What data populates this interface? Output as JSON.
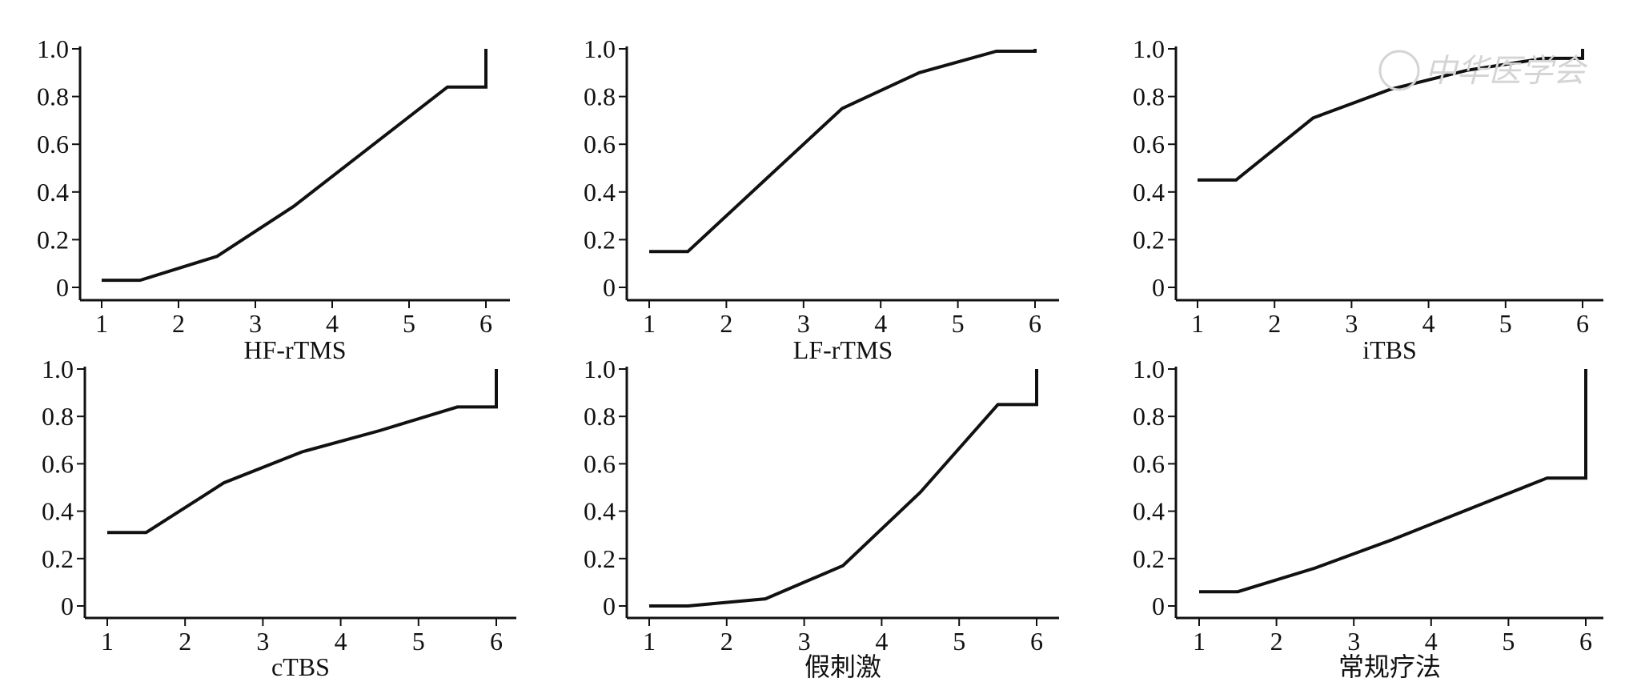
{
  "watermark": {
    "text": "中华医学会"
  },
  "chart_data": [
    {
      "type": "line",
      "xlabel": "HF-rTMS",
      "ylabel": "",
      "xlim": [
        1,
        6
      ],
      "ylim": [
        0,
        1.0
      ],
      "x_ticks": [
        "1",
        "2",
        "3",
        "4",
        "5",
        "6"
      ],
      "y_ticks": [
        "0",
        "0.2",
        "0.4",
        "0.6",
        "0.8",
        "1.0"
      ],
      "grid": false,
      "x": [
        1,
        1.5,
        2.5,
        3.5,
        4.5,
        5.5,
        6,
        6
      ],
      "values": [
        0.03,
        0.03,
        0.13,
        0.34,
        0.59,
        0.84,
        0.84,
        1.0
      ]
    },
    {
      "type": "line",
      "xlabel": "LF-rTMS",
      "ylabel": "",
      "xlim": [
        1,
        6
      ],
      "ylim": [
        0,
        1.0
      ],
      "x_ticks": [
        "1",
        "2",
        "3",
        "4",
        "5",
        "6"
      ],
      "y_ticks": [
        "0",
        "0.2",
        "0.4",
        "0.6",
        "0.8",
        "1.0"
      ],
      "grid": false,
      "x": [
        1,
        1.5,
        2.5,
        3.5,
        4.5,
        5.5,
        6,
        6
      ],
      "values": [
        0.15,
        0.15,
        0.45,
        0.75,
        0.9,
        0.99,
        0.99,
        1.0
      ]
    },
    {
      "type": "line",
      "xlabel": "iTBS",
      "ylabel": "",
      "xlim": [
        1,
        6
      ],
      "ylim": [
        0,
        1.0
      ],
      "x_ticks": [
        "1",
        "2",
        "3",
        "4",
        "5",
        "6"
      ],
      "y_ticks": [
        "0",
        "0.2",
        "0.4",
        "0.6",
        "0.8",
        "1.0"
      ],
      "grid": false,
      "x": [
        1,
        1.5,
        2.5,
        3.5,
        4.5,
        5.5,
        6,
        6
      ],
      "values": [
        0.45,
        0.45,
        0.71,
        0.83,
        0.91,
        0.96,
        0.96,
        1.0
      ]
    },
    {
      "type": "line",
      "xlabel": "cTBS",
      "ylabel": "",
      "xlim": [
        1,
        6
      ],
      "ylim": [
        0,
        1.0
      ],
      "x_ticks": [
        "1",
        "2",
        "3",
        "4",
        "5",
        "6"
      ],
      "y_ticks": [
        "0",
        "0.2",
        "0.4",
        "0.6",
        "0.8",
        "1.0"
      ],
      "grid": false,
      "x": [
        1,
        1.5,
        2.5,
        3.5,
        4.5,
        5.5,
        6,
        6
      ],
      "values": [
        0.31,
        0.31,
        0.52,
        0.65,
        0.74,
        0.84,
        0.84,
        1.0
      ]
    },
    {
      "type": "line",
      "xlabel": "假刺激",
      "ylabel": "",
      "xlim": [
        1,
        6
      ],
      "ylim": [
        0,
        1.0
      ],
      "x_ticks": [
        "1",
        "2",
        "3",
        "4",
        "5",
        "6"
      ],
      "y_ticks": [
        "0",
        "0.2",
        "0.4",
        "0.6",
        "0.8",
        "1.0"
      ],
      "grid": false,
      "x": [
        1,
        1.5,
        2.5,
        3.5,
        4.5,
        5.5,
        6,
        6
      ],
      "values": [
        0.0,
        0.0,
        0.03,
        0.17,
        0.48,
        0.85,
        0.85,
        1.0
      ]
    },
    {
      "type": "line",
      "xlabel": "常规疗法",
      "ylabel": "",
      "xlim": [
        1,
        6
      ],
      "ylim": [
        0,
        1.0
      ],
      "x_ticks": [
        "1",
        "2",
        "3",
        "4",
        "5",
        "6"
      ],
      "y_ticks": [
        "0",
        "0.2",
        "0.4",
        "0.6",
        "0.8",
        "1.0"
      ],
      "grid": false,
      "x": [
        1,
        1.5,
        2.5,
        3.5,
        4.5,
        5.5,
        6,
        6
      ],
      "values": [
        0.06,
        0.06,
        0.16,
        0.28,
        0.41,
        0.54,
        0.54,
        1.0
      ]
    }
  ]
}
